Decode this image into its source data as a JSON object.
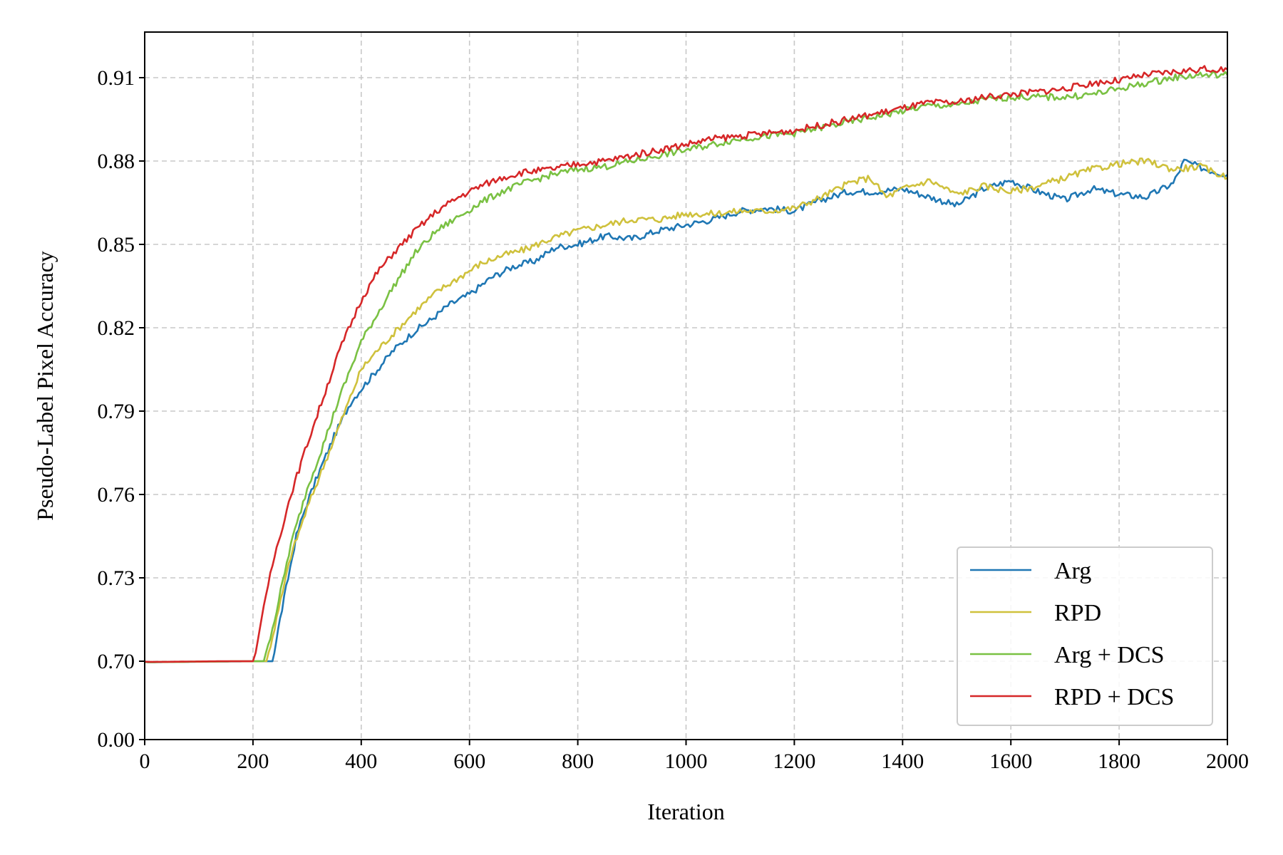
{
  "chart_data": {
    "type": "line",
    "title": "",
    "xlabel": "Iteration",
    "ylabel": "Pseudo-Label Pixel Accuracy",
    "xlim": [
      0,
      2000
    ],
    "x_ticks": [
      0,
      200,
      400,
      600,
      800,
      1000,
      1200,
      1400,
      1600,
      1800,
      2000
    ],
    "x_tick_labels": [
      "0",
      "200",
      "400",
      "600",
      "800",
      "1000",
      "1200",
      "1400",
      "1600",
      "1800",
      "2000"
    ],
    "y_scale": "broken: 0.00 at the baseline, then linear from 0.70 to 0.91",
    "y_ticks": [
      0.0,
      0.7,
      0.73,
      0.76,
      0.79,
      0.82,
      0.85,
      0.88,
      0.91
    ],
    "y_tick_labels": [
      "0.00",
      "0.70",
      "0.73",
      "0.76",
      "0.79",
      "0.82",
      "0.85",
      "0.88",
      "0.91"
    ],
    "grid": true,
    "legend_position": "lower-right",
    "series": [
      {
        "name": "Arg",
        "color": "#1f77b4",
        "points": [
          [
            0,
            0.692
          ],
          [
            10,
            0.691
          ],
          [
            30,
            0.692
          ],
          [
            60,
            0.6935
          ],
          [
            100,
            0.6955
          ],
          [
            130,
            0.697
          ],
          [
            160,
            0.698
          ],
          [
            200,
            0.699
          ],
          [
            236,
            0.7
          ],
          [
            250,
            0.715
          ],
          [
            280,
            0.745
          ],
          [
            300,
            0.757
          ],
          [
            320,
            0.767
          ],
          [
            350,
            0.781
          ],
          [
            380,
            0.793
          ],
          [
            400,
            0.798
          ],
          [
            430,
            0.805
          ],
          [
            460,
            0.812
          ],
          [
            500,
            0.819
          ],
          [
            530,
            0.823
          ],
          [
            560,
            0.828
          ],
          [
            600,
            0.832
          ],
          [
            640,
            0.838
          ],
          [
            680,
            0.842
          ],
          [
            720,
            0.844
          ],
          [
            760,
            0.849
          ],
          [
            800,
            0.85
          ],
          [
            850,
            0.853
          ],
          [
            900,
            0.852
          ],
          [
            950,
            0.855
          ],
          [
            1000,
            0.857
          ],
          [
            1050,
            0.859
          ],
          [
            1100,
            0.862
          ],
          [
            1150,
            0.863
          ],
          [
            1200,
            0.862
          ],
          [
            1250,
            0.866
          ],
          [
            1300,
            0.869
          ],
          [
            1350,
            0.869
          ],
          [
            1400,
            0.87
          ],
          [
            1450,
            0.867
          ],
          [
            1500,
            0.864
          ],
          [
            1550,
            0.87
          ],
          [
            1600,
            0.873
          ],
          [
            1650,
            0.869
          ],
          [
            1700,
            0.866
          ],
          [
            1750,
            0.87
          ],
          [
            1800,
            0.868
          ],
          [
            1850,
            0.867
          ],
          [
            1900,
            0.872
          ],
          [
            1920,
            0.88
          ],
          [
            1960,
            0.877
          ],
          [
            2000,
            0.875
          ]
        ]
      },
      {
        "name": "RPD",
        "color": "#cfc13c",
        "points": [
          [
            0,
            0.6925
          ],
          [
            10,
            0.6915
          ],
          [
            30,
            0.6925
          ],
          [
            60,
            0.694
          ],
          [
            100,
            0.696
          ],
          [
            130,
            0.6975
          ],
          [
            160,
            0.6985
          ],
          [
            200,
            0.699
          ],
          [
            225,
            0.7
          ],
          [
            240,
            0.712
          ],
          [
            270,
            0.738
          ],
          [
            300,
            0.755
          ],
          [
            330,
            0.77
          ],
          [
            360,
            0.785
          ],
          [
            400,
            0.805
          ],
          [
            430,
            0.812
          ],
          [
            460,
            0.818
          ],
          [
            500,
            0.826
          ],
          [
            540,
            0.833
          ],
          [
            580,
            0.838
          ],
          [
            620,
            0.843
          ],
          [
            660,
            0.846
          ],
          [
            700,
            0.848
          ],
          [
            750,
            0.852
          ],
          [
            800,
            0.855
          ],
          [
            850,
            0.857
          ],
          [
            900,
            0.859
          ],
          [
            950,
            0.859
          ],
          [
            1000,
            0.861
          ],
          [
            1050,
            0.861
          ],
          [
            1100,
            0.862
          ],
          [
            1150,
            0.862
          ],
          [
            1200,
            0.863
          ],
          [
            1250,
            0.867
          ],
          [
            1300,
            0.872
          ],
          [
            1340,
            0.874
          ],
          [
            1370,
            0.867
          ],
          [
            1400,
            0.87
          ],
          [
            1450,
            0.873
          ],
          [
            1500,
            0.868
          ],
          [
            1550,
            0.871
          ],
          [
            1600,
            0.869
          ],
          [
            1650,
            0.871
          ],
          [
            1700,
            0.874
          ],
          [
            1750,
            0.877
          ],
          [
            1800,
            0.879
          ],
          [
            1850,
            0.88
          ],
          [
            1900,
            0.877
          ],
          [
            1950,
            0.878
          ],
          [
            2000,
            0.874
          ]
        ]
      },
      {
        "name": "Arg + DCS",
        "color": "#7ac143",
        "points": [
          [
            0,
            0.6925
          ],
          [
            10,
            0.6915
          ],
          [
            30,
            0.6925
          ],
          [
            60,
            0.694
          ],
          [
            100,
            0.696
          ],
          [
            130,
            0.6975
          ],
          [
            160,
            0.6985
          ],
          [
            200,
            0.699
          ],
          [
            220,
            0.7
          ],
          [
            240,
            0.715
          ],
          [
            270,
            0.742
          ],
          [
            300,
            0.762
          ],
          [
            330,
            0.778
          ],
          [
            360,
            0.795
          ],
          [
            400,
            0.815
          ],
          [
            430,
            0.825
          ],
          [
            460,
            0.835
          ],
          [
            500,
            0.847
          ],
          [
            540,
            0.855
          ],
          [
            580,
            0.86
          ],
          [
            620,
            0.865
          ],
          [
            660,
            0.869
          ],
          [
            700,
            0.872
          ],
          [
            750,
            0.875
          ],
          [
            800,
            0.877
          ],
          [
            850,
            0.878
          ],
          [
            900,
            0.88
          ],
          [
            950,
            0.882
          ],
          [
            1000,
            0.884
          ],
          [
            1050,
            0.886
          ],
          [
            1100,
            0.888
          ],
          [
            1150,
            0.889
          ],
          [
            1200,
            0.89
          ],
          [
            1250,
            0.892
          ],
          [
            1300,
            0.894
          ],
          [
            1350,
            0.896
          ],
          [
            1400,
            0.898
          ],
          [
            1450,
            0.9
          ],
          [
            1500,
            0.9
          ],
          [
            1550,
            0.902
          ],
          [
            1600,
            0.903
          ],
          [
            1650,
            0.903
          ],
          [
            1700,
            0.903
          ],
          [
            1750,
            0.904
          ],
          [
            1800,
            0.906
          ],
          [
            1850,
            0.908
          ],
          [
            1900,
            0.91
          ],
          [
            1950,
            0.911
          ],
          [
            2000,
            0.911
          ]
        ]
      },
      {
        "name": "RPD + DCS",
        "color": "#d62728",
        "points": [
          [
            0,
            0.6955
          ],
          [
            10,
            0.694
          ],
          [
            30,
            0.694
          ],
          [
            60,
            0.6955
          ],
          [
            100,
            0.6975
          ],
          [
            130,
            0.699
          ],
          [
            160,
            0.6995
          ],
          [
            200,
            0.6995
          ],
          [
            205,
            0.703
          ],
          [
            220,
            0.72
          ],
          [
            240,
            0.738
          ],
          [
            270,
            0.76
          ],
          [
            300,
            0.778
          ],
          [
            330,
            0.795
          ],
          [
            360,
            0.812
          ],
          [
            400,
            0.83
          ],
          [
            430,
            0.84
          ],
          [
            460,
            0.847
          ],
          [
            500,
            0.855
          ],
          [
            540,
            0.862
          ],
          [
            580,
            0.867
          ],
          [
            620,
            0.871
          ],
          [
            660,
            0.874
          ],
          [
            700,
            0.876
          ],
          [
            750,
            0.877
          ],
          [
            800,
            0.879
          ],
          [
            850,
            0.88
          ],
          [
            900,
            0.882
          ],
          [
            950,
            0.884
          ],
          [
            1000,
            0.886
          ],
          [
            1050,
            0.888
          ],
          [
            1100,
            0.889
          ],
          [
            1150,
            0.89
          ],
          [
            1200,
            0.891
          ],
          [
            1250,
            0.893
          ],
          [
            1300,
            0.895
          ],
          [
            1350,
            0.897
          ],
          [
            1400,
            0.899
          ],
          [
            1450,
            0.901
          ],
          [
            1500,
            0.901
          ],
          [
            1550,
            0.903
          ],
          [
            1600,
            0.904
          ],
          [
            1650,
            0.905
          ],
          [
            1700,
            0.906
          ],
          [
            1750,
            0.908
          ],
          [
            1800,
            0.909
          ],
          [
            1850,
            0.911
          ],
          [
            1900,
            0.912
          ],
          [
            1950,
            0.913
          ],
          [
            2000,
            0.913
          ]
        ]
      }
    ]
  }
}
